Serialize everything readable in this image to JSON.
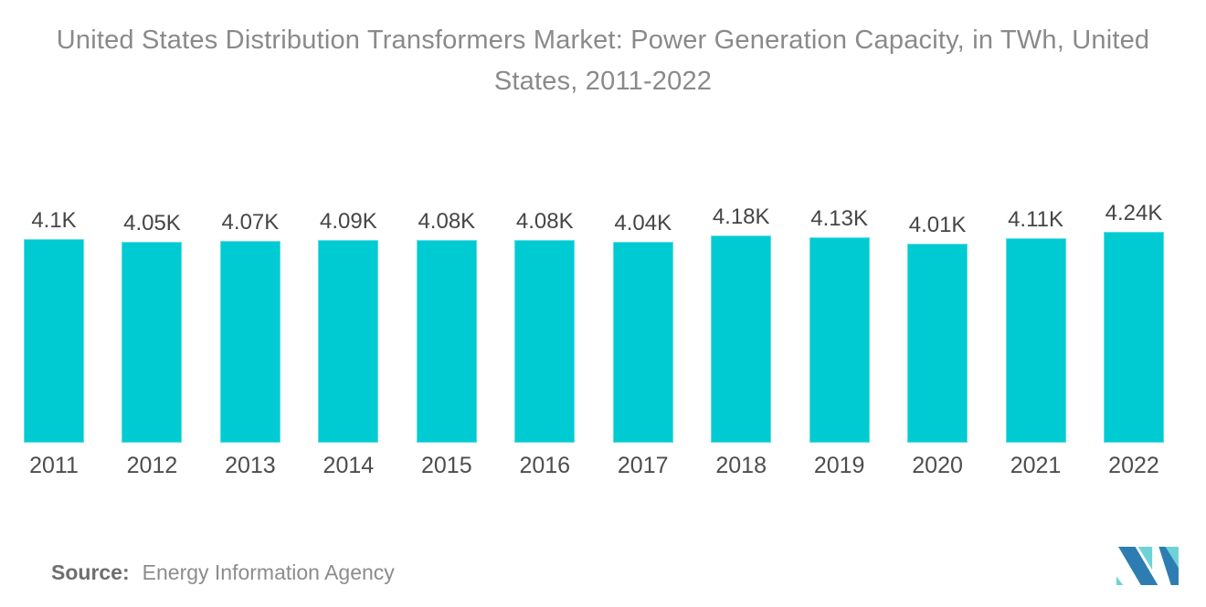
{
  "title": "United States Distribution Transformers Market: Power Generation Capacity, in TWh, United States, 2011-2022",
  "source": {
    "label": "Source:",
    "text": "Energy Information Agency"
  },
  "logo": {
    "name": "mordor-intelligence-logo",
    "blue": "#2d7db2",
    "teal": "#6fd2d6"
  },
  "colors": {
    "background": "#ffffff",
    "bar": "#00cbd2",
    "title_text": "#8a8a8a",
    "value_label_text": "#454545",
    "axis_label_text": "#4d4d4d",
    "source_label_text": "#6e6e6e",
    "source_text": "#8c8c8c"
  },
  "chart_data": {
    "type": "bar",
    "title": "United States Distribution Transformers Market: Power Generation Capacity, in TWh, United States, 2011-2022",
    "categories": [
      "2011",
      "2012",
      "2013",
      "2014",
      "2015",
      "2016",
      "2017",
      "2018",
      "2019",
      "2020",
      "2021",
      "2022"
    ],
    "values": [
      4100,
      4050,
      4070,
      4090,
      4080,
      4080,
      4040,
      4180,
      4130,
      4010,
      4110,
      4240
    ],
    "value_labels": [
      "4.1K",
      "4.05K",
      "4.07K",
      "4.09K",
      "4.08K",
      "4.08K",
      "4.04K",
      "4.18K",
      "4.13K",
      "4.01K",
      "4.11K",
      "4.24K"
    ],
    "unit": "TWh",
    "xlabel": "",
    "ylabel": "",
    "ylim": [
      0,
      4400
    ],
    "grid": false,
    "legend": false,
    "data_labels": true,
    "bar_color": "#00cbd2"
  }
}
